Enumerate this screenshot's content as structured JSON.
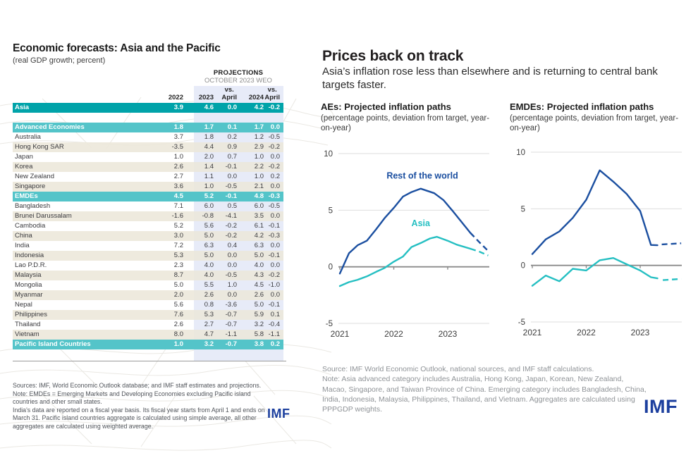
{
  "colors": {
    "teal_dark": "#00a3a9",
    "teal_light": "#54c4c9",
    "beige": "#efece2",
    "lavender": "#e7ebf8",
    "line_blue": "#1b4fa0",
    "line_teal": "#25bfc2",
    "logo_blue": "#1c3f9e"
  },
  "left_panel": {
    "title": "Economic forecasts: Asia and the Pacific",
    "subtitle": "(real GDP growth; percent)",
    "projections_label": "PROJECTIONS",
    "projections_sublabel": "OCTOBER 2023 WEO",
    "table": {
      "col_headers": [
        "2022",
        "2023",
        "vs.\nApril",
        "2024",
        "vs.\nApril"
      ],
      "rows": [
        {
          "label": "Asia",
          "type": "header-dark",
          "values": [
            "3.9",
            "4.6",
            "0.0",
            "4.2",
            "-0.2"
          ]
        },
        {
          "label": "",
          "type": "spacer",
          "values": []
        },
        {
          "label": "Advanced Economies",
          "type": "header",
          "values": [
            "1.8",
            "1.7",
            "0.1",
            "1.7",
            "0.0"
          ]
        },
        {
          "label": "Australia",
          "type": "row",
          "values": [
            "3.7",
            "1.8",
            "0.2",
            "1.2",
            "-0.5"
          ]
        },
        {
          "label": "Hong Kong SAR",
          "type": "row",
          "values": [
            "-3.5",
            "4.4",
            "0.9",
            "2.9",
            "-0.2"
          ]
        },
        {
          "label": "Japan",
          "type": "row",
          "values": [
            "1.0",
            "2.0",
            "0.7",
            "1.0",
            "0.0"
          ]
        },
        {
          "label": "Korea",
          "type": "row",
          "values": [
            "2.6",
            "1.4",
            "-0.1",
            "2.2",
            "-0.2"
          ]
        },
        {
          "label": "New Zealand",
          "type": "row",
          "values": [
            "2.7",
            "1.1",
            "0.0",
            "1.0",
            "0.2"
          ]
        },
        {
          "label": "Singapore",
          "type": "row",
          "values": [
            "3.6",
            "1.0",
            "-0.5",
            "2.1",
            "0.0"
          ]
        },
        {
          "label": "EMDEs",
          "type": "header",
          "values": [
            "4.5",
            "5.2",
            "-0.1",
            "4.8",
            "-0.3"
          ]
        },
        {
          "label": "Bangladesh",
          "type": "row",
          "values": [
            "7.1",
            "6.0",
            "0.5",
            "6.0",
            "-0.5"
          ]
        },
        {
          "label": "Brunei Darussalam",
          "type": "row",
          "values": [
            "-1.6",
            "-0.8",
            "-4.1",
            "3.5",
            "0.0"
          ]
        },
        {
          "label": "Cambodia",
          "type": "row",
          "values": [
            "5.2",
            "5.6",
            "-0.2",
            "6.1",
            "-0.1"
          ]
        },
        {
          "label": "China",
          "type": "row",
          "values": [
            "3.0",
            "5.0",
            "-0.2",
            "4.2",
            "-0.3"
          ]
        },
        {
          "label": "India",
          "type": "row",
          "values": [
            "7.2",
            "6.3",
            "0.4",
            "6.3",
            "0.0"
          ]
        },
        {
          "label": "Indonesia",
          "type": "row",
          "values": [
            "5.3",
            "5.0",
            "0.0",
            "5.0",
            "-0.1"
          ]
        },
        {
          "label": "Lao P.D.R.",
          "type": "row",
          "values": [
            "2.3",
            "4.0",
            "0.0",
            "4.0",
            "0.0"
          ]
        },
        {
          "label": "Malaysia",
          "type": "row",
          "values": [
            "8.7",
            "4.0",
            "-0.5",
            "4.3",
            "-0.2"
          ]
        },
        {
          "label": "Mongolia",
          "type": "row",
          "values": [
            "5.0",
            "5.5",
            "1.0",
            "4.5",
            "-1.0"
          ]
        },
        {
          "label": "Myanmar",
          "type": "row",
          "values": [
            "2.0",
            "2.6",
            "0.0",
            "2.6",
            "0.0"
          ]
        },
        {
          "label": "Nepal",
          "type": "row",
          "values": [
            "5.6",
            "0.8",
            "-3.6",
            "5.0",
            "-0.1"
          ]
        },
        {
          "label": "Philippines",
          "type": "row",
          "values": [
            "7.6",
            "5.3",
            "-0.7",
            "5.9",
            "0.1"
          ]
        },
        {
          "label": "Thailand",
          "type": "row",
          "values": [
            "2.6",
            "2.7",
            "-0.7",
            "3.2",
            "-0.4"
          ]
        },
        {
          "label": "Vietnam",
          "type": "row",
          "values": [
            "8.0",
            "4.7",
            "-1.1",
            "5.8",
            "-1.1"
          ]
        },
        {
          "label": "Pacific Island Countries",
          "type": "header",
          "values": [
            "1.0",
            "3.2",
            "-0.7",
            "3.8",
            "0.2"
          ]
        }
      ]
    },
    "footnotes": [
      "Sources: IMF, World Economic Outlook database; and IMF staff estimates and projections.",
      "Note: EMDEs = Emerging Markets and Developing Economies excluding Pacific island countries and other small states.",
      "India's data are reported on a fiscal year basis. Its fiscal year starts from April 1 and ends on March 31. Pacific island countries aggregate is calculated using simple average, all other aggregates are calculated using weighted average."
    ],
    "logo": "IMF"
  },
  "right_panel": {
    "title": "Prices back on track",
    "subtitle": "Asia’s inflation rose less than elsewhere and is returning to central bank targets faster.",
    "footnotes": [
      "Source: IMF World Economic Outlook, national sources, and IMF staff calculations.",
      "Note: Asia advanced category includes Australia, Hong Kong, Japan, Korean, New Zealand, Macao, Singapore, and Taiwan Province of China. Emerging category includes Bangladesh, China, India, Indonesia, Malaysia, Philippines, Thailand, and Vietnam. Aggregates are calculated using PPPGDP weights."
    ],
    "logo": "IMF"
  },
  "chart_data": [
    {
      "id": "aes",
      "type": "line",
      "title": "AEs: Projected inflation paths",
      "subtitle": "(percentage points, deviation from target, year-on-year)",
      "xlim": [
        2021,
        2023.78
      ],
      "ylim": [
        -5,
        10
      ],
      "yticks": [
        10,
        5,
        0,
        -5
      ],
      "xticks": [
        2021,
        2022,
        2023
      ],
      "grid": true,
      "series": [
        {
          "name": "Rest of the world",
          "color_key": "line_blue",
          "solid": [
            [
              2021,
              -0.6
            ],
            [
              2021.17,
              1.2
            ],
            [
              2021.33,
              1.9
            ],
            [
              2021.5,
              2.3
            ],
            [
              2021.67,
              3.3
            ],
            [
              2021.83,
              4.3
            ],
            [
              2022,
              5.2
            ],
            [
              2022.17,
              6.2
            ],
            [
              2022.33,
              6.6
            ],
            [
              2022.5,
              6.9
            ],
            [
              2022.75,
              6.5
            ],
            [
              2022.92,
              5.9
            ],
            [
              2023.08,
              5.0
            ],
            [
              2023.25,
              4.0
            ],
            [
              2023.42,
              3.0
            ]
          ],
          "dashed": [
            [
              2023.42,
              3.0
            ],
            [
              2023.58,
              2.2
            ],
            [
              2023.73,
              1.5
            ]
          ]
        },
        {
          "name": "Asia",
          "color_key": "line_teal",
          "solid": [
            [
              2021,
              -1.7
            ],
            [
              2021.17,
              -1.35
            ],
            [
              2021.33,
              -1.15
            ],
            [
              2021.5,
              -0.85
            ],
            [
              2021.67,
              -0.45
            ],
            [
              2021.83,
              -0.1
            ],
            [
              2022,
              0.45
            ],
            [
              2022.17,
              0.9
            ],
            [
              2022.33,
              1.75
            ],
            [
              2022.5,
              2.1
            ],
            [
              2022.67,
              2.5
            ],
            [
              2022.8,
              2.65
            ],
            [
              2023,
              2.3
            ],
            [
              2023.17,
              1.95
            ],
            [
              2023.42,
              1.6
            ]
          ],
          "dashed": [
            [
              2023.42,
              1.6
            ],
            [
              2023.58,
              1.35
            ],
            [
              2023.75,
              1.0
            ]
          ]
        }
      ],
      "annotations": [
        {
          "text": "Rest of the world",
          "x": 2022.53,
          "y": 7.8,
          "color_key": "line_blue"
        },
        {
          "text": "Asia",
          "x": 2022.5,
          "y": 3.6,
          "color_key": "line_teal"
        }
      ]
    },
    {
      "id": "emdes",
      "type": "line",
      "title": "EMDEs: Projected inflation paths",
      "subtitle": "(percentage points, deviation from target, year-on-year)",
      "xlim": [
        2021,
        2023.78
      ],
      "ylim": [
        -5,
        10
      ],
      "yticks": [
        10,
        5,
        0,
        -5
      ],
      "xticks": [
        2021,
        2022,
        2023
      ],
      "grid": true,
      "series": [
        {
          "name": "Rest of the world",
          "color_key": "line_blue",
          "solid": [
            [
              2021,
              1.0
            ],
            [
              2021.25,
              2.3
            ],
            [
              2021.5,
              3.0
            ],
            [
              2021.75,
              4.2
            ],
            [
              2022,
              5.8
            ],
            [
              2022.25,
              8.4
            ],
            [
              2022.5,
              7.4
            ],
            [
              2022.75,
              6.3
            ],
            [
              2023,
              4.8
            ],
            [
              2023.2,
              1.8
            ],
            [
              2023.32,
              1.78
            ]
          ],
          "dashed": [
            [
              2023.4,
              1.85
            ],
            [
              2023.76,
              1.95
            ]
          ]
        },
        {
          "name": "Asia",
          "color_key": "line_teal",
          "solid": [
            [
              2021,
              -1.8
            ],
            [
              2021.25,
              -0.9
            ],
            [
              2021.5,
              -1.4
            ],
            [
              2021.75,
              -0.3
            ],
            [
              2022,
              -0.45
            ],
            [
              2022.25,
              0.45
            ],
            [
              2022.5,
              0.65
            ],
            [
              2022.75,
              0.1
            ],
            [
              2023,
              -0.45
            ],
            [
              2023.2,
              -1.05
            ],
            [
              2023.32,
              -1.15
            ]
          ],
          "dashed": [
            [
              2023.42,
              -1.3
            ],
            [
              2023.76,
              -1.2
            ]
          ]
        }
      ],
      "annotations": []
    }
  ]
}
